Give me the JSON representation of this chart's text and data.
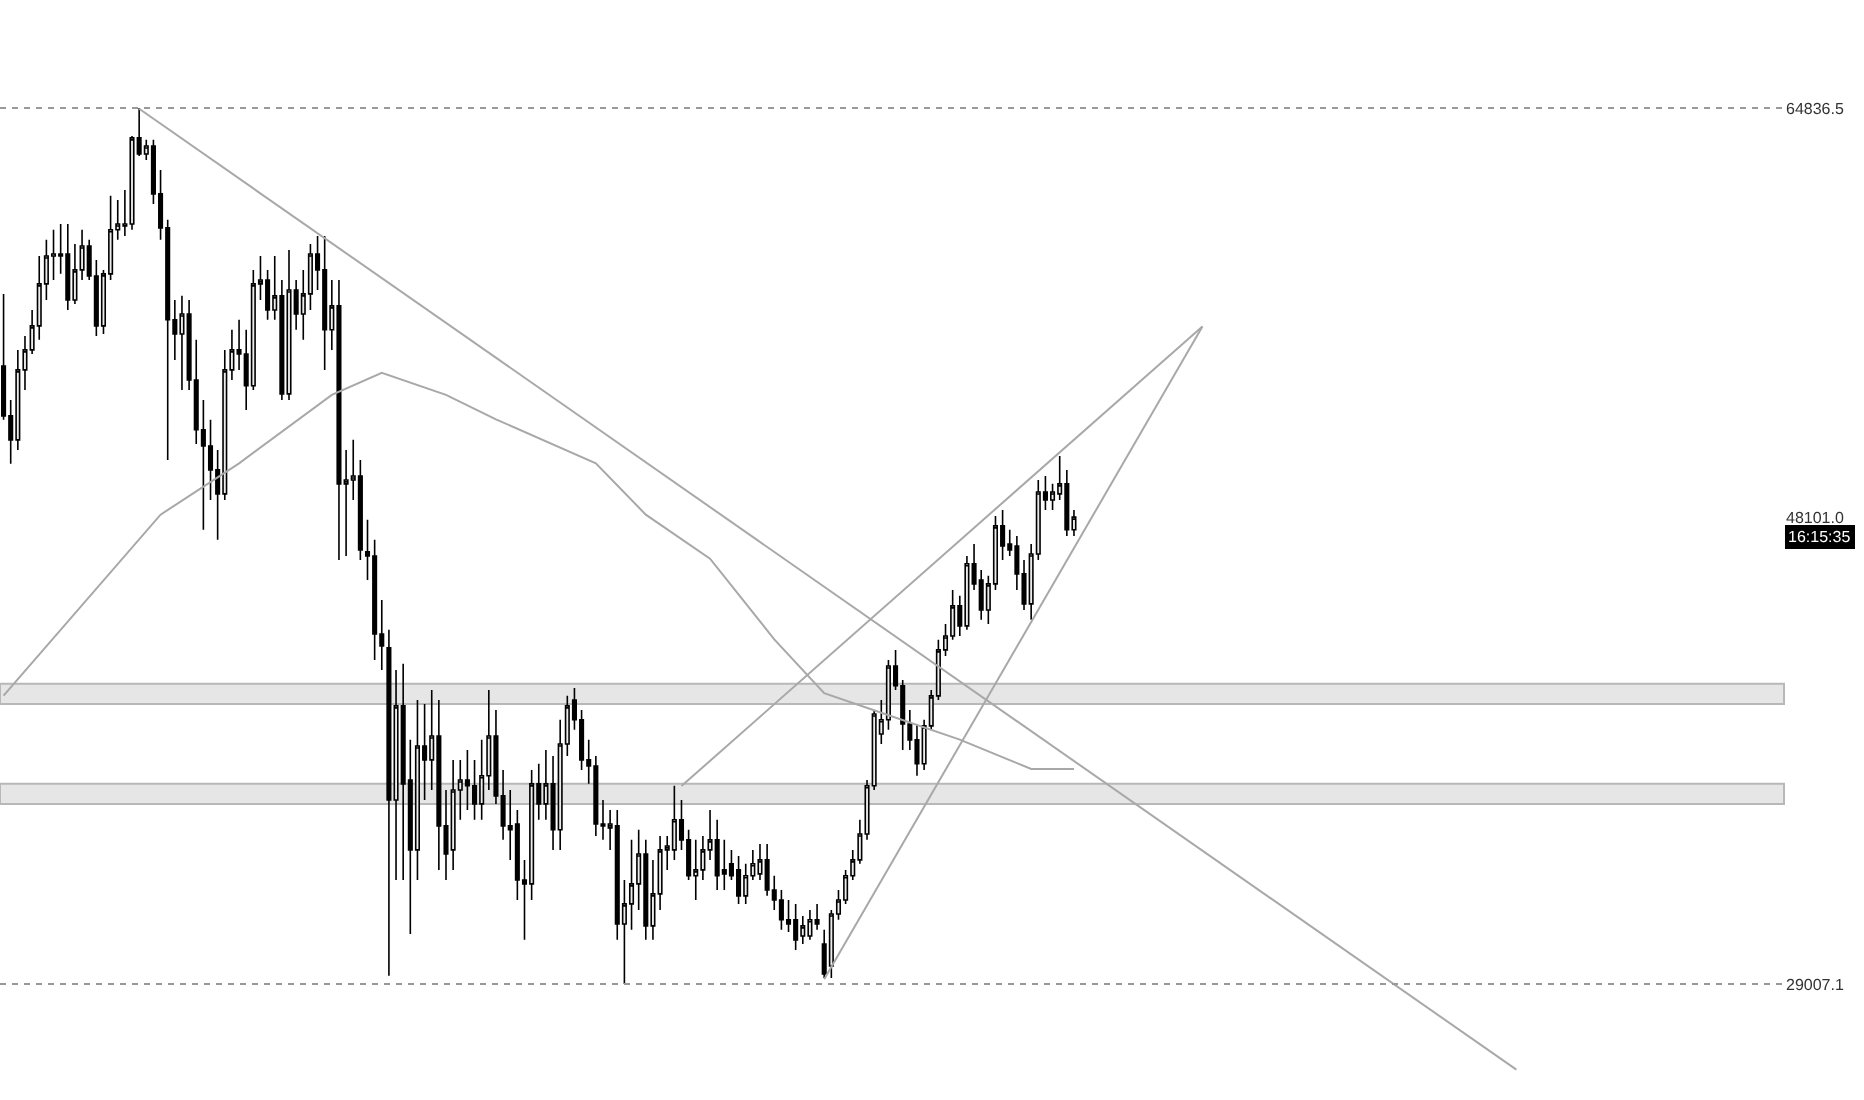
{
  "chart_data": {
    "type": "candlestick",
    "categories": [
      null,
      null,
      null,
      null,
      null,
      null,
      null,
      null,
      null,
      null,
      null,
      null,
      null,
      null,
      null,
      null,
      null,
      null,
      null,
      null,
      null,
      null,
      null,
      null,
      null,
      null,
      null,
      null,
      null,
      null,
      null,
      null,
      null,
      null,
      null,
      null,
      null,
      null,
      null,
      null,
      null,
      null,
      null,
      null,
      null,
      null,
      null,
      null,
      null,
      null,
      null,
      null,
      null,
      null,
      null,
      null,
      null,
      null,
      null,
      null,
      null,
      null,
      null,
      null,
      null,
      null,
      null,
      null,
      null,
      null,
      null,
      null,
      null,
      null,
      null,
      null,
      null,
      null,
      null,
      null,
      null,
      null,
      null,
      null,
      null,
      null,
      null,
      null,
      null,
      null,
      null,
      null,
      null,
      null,
      null,
      null,
      null,
      null,
      null,
      null,
      null,
      null,
      null,
      null,
      null,
      null,
      null,
      null,
      null,
      null,
      null,
      null,
      null,
      null,
      null,
      null,
      null,
      null,
      null,
      null,
      null,
      null,
      null,
      null,
      null,
      null,
      null,
      null,
      null,
      null,
      null,
      null,
      null,
      null,
      null,
      null,
      null,
      null,
      null,
      null,
      null,
      null,
      null,
      null,
      null,
      null,
      null,
      null,
      null,
      null,
      null,
      null,
      null,
      null,
      null,
      null,
      null,
      null,
      null,
      null,
      null,
      null,
      null,
      null,
      null,
      null,
      null,
      null,
      null,
      null,
      null,
      null,
      null,
      null,
      null,
      null,
      null,
      null,
      null,
      null,
      null,
      null,
      null,
      null,
      null,
      null,
      null,
      null,
      null,
      null,
      null,
      null,
      null,
      null,
      null,
      null,
      null,
      null,
      null,
      null,
      null,
      null,
      null,
      null,
      null,
      null,
      null,
      null,
      null,
      null,
      null,
      null,
      null,
      null,
      null,
      null,
      null,
      null,
      null,
      null,
      null,
      null,
      null,
      null,
      null,
      null,
      null,
      null,
      null,
      null,
      null,
      null,
      null,
      null,
      null,
      null,
      null,
      null,
      null,
      null,
      null,
      null,
      null,
      null,
      null,
      null,
      null,
      null,
      null,
      null
    ],
    "ohlc": [
      [
        54280,
        57230,
        52080,
        52240
      ],
      [
        52240,
        52890,
        50280,
        51260
      ],
      [
        51260,
        54940,
        50850,
        54120
      ],
      [
        54120,
        55510,
        53300,
        54940
      ],
      [
        54940,
        56570,
        54770,
        55920
      ],
      [
        55920,
        58780,
        55350,
        57640
      ],
      [
        57640,
        59440,
        56980,
        58780
      ],
      [
        58780,
        59850,
        57800,
        58860
      ],
      [
        58860,
        60090,
        58050,
        58780
      ],
      [
        58860,
        60090,
        56570,
        56980
      ],
      [
        56980,
        59270,
        56820,
        58210
      ],
      [
        58210,
        59850,
        57800,
        59190
      ],
      [
        59190,
        59440,
        57800,
        57960
      ],
      [
        57960,
        58620,
        55510,
        55920
      ],
      [
        55920,
        58210,
        55590,
        58050
      ],
      [
        58050,
        61240,
        57800,
        59850
      ],
      [
        59850,
        61070,
        59440,
        60090
      ],
      [
        60010,
        61480,
        59600,
        60090
      ],
      [
        60090,
        63690,
        59850,
        63610
      ],
      [
        63610,
        64836.5,
        62870,
        62950
      ],
      [
        62950,
        63530,
        62710,
        63280
      ],
      [
        63280,
        63530,
        60910,
        61320
      ],
      [
        61320,
        62300,
        59440,
        59930
      ],
      [
        59930,
        60260,
        50440,
        56170
      ],
      [
        56170,
        56980,
        54530,
        55590
      ],
      [
        55590,
        57150,
        53300,
        56410
      ],
      [
        56410,
        56980,
        53300,
        53710
      ],
      [
        53710,
        55350,
        51090,
        51670
      ],
      [
        51670,
        52890,
        47580,
        51010
      ],
      [
        51010,
        52080,
        48800,
        50030
      ],
      [
        50030,
        50850,
        47170,
        49050
      ],
      [
        49050,
        54940,
        48800,
        54120
      ],
      [
        54120,
        55760,
        53710,
        54940
      ],
      [
        54940,
        56170,
        54120,
        54770
      ],
      [
        54770,
        55760,
        52480,
        53470
      ],
      [
        53470,
        58210,
        53300,
        57640
      ],
      [
        57640,
        58780,
        56980,
        57800
      ],
      [
        57800,
        58210,
        56170,
        56570
      ],
      [
        56570,
        58780,
        56170,
        57150
      ],
      [
        57150,
        57800,
        52890,
        53140
      ],
      [
        53140,
        59030,
        52890,
        57390
      ],
      [
        57390,
        57800,
        55760,
        56410
      ],
      [
        56410,
        58210,
        55350,
        57230
      ],
      [
        57230,
        59270,
        56570,
        58860
      ],
      [
        58860,
        59600,
        57390,
        58210
      ],
      [
        58210,
        59600,
        54120,
        55760
      ],
      [
        55760,
        57800,
        54940,
        56740
      ],
      [
        56740,
        57800,
        46350,
        49460
      ],
      [
        49460,
        50850,
        46510,
        49620
      ],
      [
        49620,
        51260,
        48800,
        49780
      ],
      [
        49780,
        50440,
        46350,
        46760
      ],
      [
        46680,
        47990,
        45530,
        46510
      ],
      [
        46510,
        47170,
        42260,
        43320
      ],
      [
        43320,
        44710,
        41850,
        42830
      ],
      [
        42750,
        43490,
        29340,
        36530
      ],
      [
        36530,
        41850,
        33260,
        40380
      ],
      [
        40380,
        42100,
        33260,
        37190
      ],
      [
        37350,
        38990,
        31050,
        34490
      ],
      [
        34490,
        40620,
        33260,
        38740
      ],
      [
        38740,
        40460,
        36530,
        38170
      ],
      [
        38170,
        41030,
        36940,
        39150
      ],
      [
        39150,
        40620,
        33670,
        35470
      ],
      [
        35470,
        36940,
        33260,
        34320
      ],
      [
        34490,
        38170,
        33670,
        36940
      ],
      [
        36940,
        38170,
        35720,
        37350
      ],
      [
        37350,
        38580,
        36120,
        37110
      ],
      [
        37110,
        38170,
        35720,
        36370
      ],
      [
        36370,
        38990,
        35720,
        37520
      ],
      [
        37520,
        41030,
        36940,
        39150
      ],
      [
        39150,
        40210,
        36370,
        36700
      ],
      [
        36700,
        37760,
        34900,
        35470
      ],
      [
        35470,
        36940,
        34080,
        35310
      ],
      [
        35550,
        36120,
        32440,
        33260
      ],
      [
        33260,
        34080,
        30810,
        33100
      ],
      [
        33100,
        37760,
        32440,
        37190
      ],
      [
        37190,
        38010,
        35720,
        36370
      ],
      [
        36370,
        38580,
        35720,
        37190
      ],
      [
        37190,
        38330,
        34490,
        35310
      ],
      [
        35310,
        39810,
        34490,
        38820
      ],
      [
        38820,
        40790,
        38330,
        40380
      ],
      [
        40620,
        41110,
        39400,
        39810
      ],
      [
        39810,
        40210,
        37760,
        38170
      ],
      [
        38170,
        38990,
        37190,
        37920
      ],
      [
        37920,
        38330,
        35060,
        35550
      ],
      [
        35550,
        36530,
        34900,
        35470
      ],
      [
        35390,
        36120,
        34490,
        35550
      ],
      [
        35470,
        36120,
        30810,
        31460
      ],
      [
        31460,
        33260,
        29007.1,
        32280
      ],
      [
        32280,
        34900,
        31220,
        33100
      ],
      [
        33100,
        35310,
        32030,
        34320
      ],
      [
        34320,
        34900,
        30810,
        31380
      ],
      [
        31380,
        34080,
        30810,
        32690
      ],
      [
        32690,
        35060,
        32030,
        34490
      ],
      [
        34490,
        35060,
        33670,
        34650
      ],
      [
        34490,
        37110,
        34080,
        35720
      ],
      [
        35720,
        36530,
        34490,
        34900
      ],
      [
        34900,
        35310,
        33260,
        33430
      ],
      [
        33430,
        34900,
        32440,
        33670
      ],
      [
        33670,
        35060,
        33260,
        34490
      ],
      [
        34490,
        36120,
        34080,
        34900
      ],
      [
        34900,
        35720,
        32850,
        33430
      ],
      [
        33670,
        34900,
        32850,
        33510
      ],
      [
        33920,
        34490,
        33260,
        33430
      ],
      [
        33670,
        34240,
        32280,
        32610
      ],
      [
        32610,
        33920,
        32280,
        33430
      ],
      [
        33430,
        34490,
        33260,
        33920
      ],
      [
        33510,
        34730,
        33260,
        34080
      ],
      [
        34080,
        34730,
        32610,
        32850
      ],
      [
        32850,
        33430,
        32030,
        32440
      ],
      [
        32440,
        32850,
        31220,
        31630
      ],
      [
        31630,
        32440,
        31130,
        31460
      ],
      [
        31630,
        32280,
        30400,
        30810
      ],
      [
        30970,
        31790,
        30640,
        31380
      ],
      [
        30970,
        32030,
        30810,
        31630
      ],
      [
        31630,
        32280,
        31220,
        31460
      ],
      [
        30640,
        31220,
        29250,
        29420
      ],
      [
        29740,
        32030,
        29250,
        31870
      ],
      [
        31870,
        32850,
        31630,
        32440
      ],
      [
        32440,
        33670,
        32280,
        33430
      ],
      [
        33430,
        34490,
        33260,
        34080
      ],
      [
        34080,
        35720,
        33920,
        35140
      ],
      [
        35140,
        37350,
        34900,
        37110
      ],
      [
        37110,
        40210,
        36940,
        40050
      ],
      [
        39230,
        40620,
        38820,
        39810
      ],
      [
        39810,
        42260,
        39400,
        42010
      ],
      [
        42010,
        42670,
        41030,
        41200
      ],
      [
        41200,
        41440,
        38580,
        39640
      ],
      [
        39640,
        40210,
        38580,
        38990
      ],
      [
        38990,
        39640,
        37520,
        38010
      ],
      [
        38010,
        39810,
        37760,
        39560
      ],
      [
        39560,
        41030,
        39400,
        40790
      ],
      [
        40790,
        43080,
        40620,
        42670
      ],
      [
        42670,
        43730,
        42420,
        43240
      ],
      [
        43240,
        45120,
        43080,
        44470
      ],
      [
        44470,
        44880,
        43240,
        43650
      ],
      [
        43650,
        46510,
        43490,
        46190
      ],
      [
        46190,
        47000,
        45120,
        45370
      ],
      [
        45530,
        45940,
        43900,
        44300
      ],
      [
        44300,
        45700,
        43730,
        45370
      ],
      [
        45370,
        48150,
        45120,
        47740
      ],
      [
        47740,
        48390,
        46350,
        46920
      ],
      [
        47000,
        47580,
        46510,
        46760
      ],
      [
        46920,
        47330,
        45120,
        45780
      ],
      [
        45780,
        46350,
        44300,
        44550
      ],
      [
        44550,
        47000,
        43900,
        46590
      ],
      [
        46590,
        49620,
        46350,
        49130
      ],
      [
        49130,
        49780,
        48390,
        48800
      ],
      [
        48800,
        49460,
        48390,
        49130
      ],
      [
        49050,
        50600,
        48800,
        49460
      ],
      [
        49460,
        50030,
        47330,
        47580
      ],
      [
        47580,
        48390,
        47330,
        48101.0
      ],
      null,
      null,
      null,
      null,
      null,
      null,
      null,
      null,
      null,
      null,
      null,
      null,
      null,
      null,
      null,
      null,
      null,
      null,
      null,
      null,
      null,
      null,
      null,
      null,
      null,
      null,
      null,
      null,
      null,
      null,
      null,
      null,
      null,
      null,
      null,
      null,
      null,
      null,
      null,
      null,
      null,
      null,
      null,
      null,
      null,
      null,
      null,
      null,
      null,
      null,
      null,
      null,
      null,
      null,
      null,
      null,
      null,
      null,
      null,
      null,
      null,
      null,
      null,
      null,
      null,
      null,
      null,
      null,
      null,
      null,
      null,
      null,
      null,
      null,
      null,
      null,
      null,
      null,
      null,
      null,
      null,
      null,
      null,
      null,
      null,
      null,
      null,
      null,
      null,
      null,
      null,
      null,
      null,
      null,
      null,
      null,
      null,
      null,
      null
    ],
    "series": [
      {
        "type": "line",
        "color": "#a8a8a8",
        "values": [
          40800,
          null,
          null,
          null,
          null,
          null,
          null,
          null,
          null,
          null,
          null,
          null,
          null,
          null,
          null,
          null,
          null,
          null,
          null,
          null,
          null,
          null,
          48200,
          null,
          null,
          null,
          null,
          null,
          null,
          null,
          null,
          null,
          null,
          50300,
          null,
          null,
          null,
          null,
          null,
          null,
          null,
          null,
          null,
          null,
          null,
          null,
          53100,
          null,
          null,
          null,
          null,
          null,
          null,
          54000,
          null,
          null,
          null,
          null,
          null,
          null,
          null,
          null,
          53100,
          null,
          null,
          null,
          null,
          null,
          null,
          52100,
          null,
          null,
          null,
          null,
          null,
          null,
          null,
          null,
          null,
          null,
          null,
          null,
          null,
          50300,
          null,
          null,
          null,
          null,
          null,
          null,
          48200,
          null,
          null,
          null,
          null,
          null,
          null,
          null,
          null,
          46400,
          null,
          null,
          null,
          null,
          null,
          null,
          null,
          null,
          43100,
          null,
          null,
          null,
          null,
          null,
          null,
          40900,
          null,
          null,
          null,
          null,
          null,
          null,
          null,
          40100,
          null,
          null,
          null,
          null,
          null,
          null,
          null,
          null,
          null,
          null,
          39000,
          null,
          null,
          null,
          null,
          null,
          null,
          null,
          null,
          null,
          37800,
          null,
          null,
          null,
          null,
          null,
          37800,
          null,
          null,
          null,
          null,
          null,
          null,
          null,
          null,
          null,
          null,
          null,
          null,
          null,
          null,
          null,
          null,
          null,
          null,
          null,
          null,
          null,
          null,
          null,
          null,
          null,
          null,
          null,
          null,
          null,
          null,
          null,
          null,
          null,
          null,
          null,
          null,
          null,
          null,
          null,
          null,
          null,
          null,
          null,
          null,
          null,
          null,
          null,
          null,
          null,
          null,
          null,
          null,
          null,
          null,
          null,
          null,
          null,
          null,
          null,
          null,
          null,
          null,
          null,
          null,
          null,
          null,
          null,
          null,
          null,
          null,
          null,
          null,
          null,
          null,
          null,
          null,
          null,
          null,
          null,
          null,
          null,
          null,
          null,
          null,
          null,
          null,
          null,
          null,
          null,
          null,
          null,
          null,
          null,
          null,
          null,
          null,
          null,
          null,
          null
        ]
      },
      {
        "type": "line",
        "color": "#a8a8a8",
        "values": [
          null,
          null,
          null,
          null,
          null,
          null,
          null,
          null,
          null,
          null,
          null,
          null,
          null,
          null,
          null,
          null,
          null,
          null,
          null,
          64800,
          null,
          null,
          null,
          null,
          null,
          null,
          null,
          null,
          null,
          null,
          null,
          null,
          null,
          null,
          null,
          null,
          null,
          null,
          null,
          null,
          null,
          null,
          null,
          null,
          null,
          null,
          null,
          null,
          null,
          null,
          null,
          null,
          null,
          null,
          null,
          null,
          null,
          null,
          null,
          null,
          null,
          null,
          null,
          null,
          null,
          null,
          null,
          null,
          null,
          null,
          null,
          null,
          null,
          null,
          null,
          null,
          null,
          null,
          null,
          null,
          null,
          null,
          null,
          null,
          null,
          null,
          null,
          null,
          null,
          null,
          null,
          null,
          null,
          null,
          null,
          null,
          null,
          null,
          null,
          null,
          null,
          null,
          null,
          null,
          null,
          null,
          null,
          null,
          null,
          null,
          null,
          null,
          null,
          null,
          null,
          null,
          null,
          null,
          null,
          null,
          null,
          null,
          null,
          null,
          null,
          null,
          null,
          null,
          null,
          null,
          null,
          null,
          null,
          null,
          null,
          null,
          null,
          null,
          null,
          null,
          null,
          null,
          null,
          null,
          null,
          null,
          null,
          null,
          null,
          null,
          null,
          null,
          null,
          null,
          null,
          null,
          null,
          null,
          null,
          null,
          null,
          null,
          null,
          null,
          null,
          null,
          null,
          null,
          null,
          null,
          null,
          null,
          null,
          null,
          null,
          null,
          null,
          null,
          null,
          null,
          null,
          null,
          null,
          null,
          null,
          null,
          null,
          null,
          null,
          null,
          null,
          null,
          null,
          null,
          null,
          null,
          null,
          null,
          null,
          null,
          null,
          null,
          null,
          null,
          null,
          null,
          null,
          null,
          null,
          null,
          null,
          null,
          25500,
          null,
          null,
          null,
          null,
          null,
          null,
          null,
          null,
          null,
          null,
          null,
          null,
          null,
          null,
          null,
          null,
          null,
          null,
          null,
          null,
          null,
          null,
          null,
          null,
          null,
          null,
          null,
          null,
          null,
          null,
          null,
          null,
          null,
          null,
          null,
          null,
          null
        ]
      },
      {
        "type": "line",
        "color": "#a8a8a8",
        "values": [
          null,
          null,
          null,
          null,
          null,
          null,
          null,
          null,
          null,
          null,
          null,
          null,
          null,
          null,
          null,
          null,
          null,
          null,
          null,
          null,
          null,
          null,
          null,
          null,
          null,
          null,
          null,
          null,
          null,
          null,
          null,
          null,
          null,
          null,
          null,
          null,
          null,
          null,
          null,
          null,
          null,
          null,
          null,
          null,
          null,
          null,
          null,
          null,
          null,
          null,
          null,
          null,
          null,
          null,
          null,
          null,
          null,
          null,
          null,
          null,
          null,
          null,
          null,
          null,
          null,
          null,
          null,
          null,
          null,
          null,
          null,
          null,
          null,
          null,
          null,
          null,
          null,
          null,
          null,
          null,
          null,
          null,
          null,
          null,
          null,
          null,
          null,
          null,
          null,
          null,
          null,
          null,
          null,
          null,
          null,
          37100,
          null,
          null,
          null,
          null,
          null,
          null,
          null,
          null,
          null,
          null,
          null,
          null,
          null,
          null,
          null,
          null,
          null,
          null,
          null,
          null,
          null,
          null,
          null,
          null,
          null,
          null,
          null,
          null,
          null,
          null,
          null,
          null,
          null,
          null,
          null,
          null,
          null,
          null,
          null,
          null,
          null,
          null,
          null,
          null,
          null,
          null,
          null,
          null,
          null,
          null,
          null,
          null,
          null,
          null,
          null,
          null,
          null,
          null,
          null,
          null,
          null,
          null,
          null,
          null,
          null,
          null,
          null,
          null,
          null,
          null,
          null,
          null,
          55900,
          null,
          null,
          null,
          null,
          null,
          null,
          null,
          null,
          null,
          null,
          null,
          null,
          null,
          null,
          null,
          null,
          null,
          null,
          null,
          null,
          null,
          null,
          null,
          null,
          null,
          null,
          null,
          null,
          null,
          null,
          null,
          null,
          null,
          null,
          null,
          null,
          null,
          null,
          null,
          null,
          null,
          null,
          null,
          null,
          null,
          null,
          null,
          null,
          null,
          null,
          null,
          null,
          null,
          null,
          null,
          null,
          null,
          null,
          null,
          null,
          null,
          null,
          null,
          null,
          null,
          null,
          null,
          null,
          null,
          null,
          null,
          null,
          null,
          null,
          null,
          null,
          null,
          null,
          null,
          null,
          null
        ]
      },
      {
        "type": "line",
        "color": "#a8a8a8",
        "values": [
          null,
          null,
          null,
          null,
          null,
          null,
          null,
          null,
          null,
          null,
          null,
          null,
          null,
          null,
          null,
          null,
          null,
          null,
          null,
          null,
          null,
          null,
          null,
          null,
          null,
          null,
          null,
          null,
          null,
          null,
          null,
          null,
          null,
          null,
          null,
          null,
          null,
          null,
          null,
          null,
          null,
          null,
          null,
          null,
          null,
          null,
          null,
          null,
          null,
          null,
          null,
          null,
          null,
          null,
          null,
          null,
          null,
          null,
          null,
          null,
          null,
          null,
          null,
          null,
          null,
          null,
          null,
          null,
          null,
          null,
          null,
          null,
          null,
          null,
          null,
          null,
          null,
          null,
          null,
          null,
          null,
          null,
          null,
          null,
          null,
          null,
          null,
          null,
          null,
          null,
          null,
          null,
          null,
          null,
          null,
          null,
          null,
          null,
          null,
          null,
          null,
          null,
          null,
          null,
          null,
          null,
          null,
          null,
          null,
          null,
          null,
          null,
          null,
          null,
          null,
          29200,
          null,
          null,
          null,
          null,
          null,
          null,
          null,
          null,
          null,
          null,
          null,
          null,
          null,
          null,
          null,
          null,
          null,
          null,
          null,
          null,
          null,
          null,
          null,
          null,
          null,
          null,
          null,
          null,
          null,
          null,
          null,
          null,
          null,
          null,
          null,
          null,
          null,
          null,
          null,
          null,
          null,
          null,
          null,
          null,
          null,
          null,
          null,
          null,
          null,
          null,
          null,
          null,
          55900,
          null,
          null,
          null,
          null,
          null,
          null,
          null,
          null,
          null,
          null,
          null,
          null,
          null,
          null,
          null,
          null,
          null,
          null,
          null,
          null,
          null,
          null,
          null,
          null,
          null,
          null,
          null,
          null,
          null,
          null,
          null,
          null,
          null,
          null,
          null,
          null,
          null,
          null,
          null,
          null,
          null,
          null,
          null,
          null,
          null,
          null,
          null,
          null,
          null,
          null,
          null,
          null,
          null,
          null,
          null,
          null,
          null,
          null,
          null,
          null,
          null,
          null,
          null,
          null,
          null,
          null,
          null,
          null,
          null,
          null,
          null,
          null,
          null,
          null,
          null,
          null,
          null,
          null,
          null,
          null,
          null
        ]
      }
    ],
    "bands": [
      {
        "axis": "y",
        "from": 40460,
        "to": 41280,
        "color": "#e6e6e6"
      },
      {
        "axis": "y",
        "from": 36370,
        "to": 37190,
        "color": "#e6e6e6"
      }
    ],
    "ref_lines": [
      {
        "axis": "y",
        "value": 64836.5,
        "color": "#999999",
        "line_style": "dotted"
      },
      {
        "axis": "y",
        "value": 29007.1,
        "color": "#999999",
        "line_style": "dotted"
      }
    ],
    "annotations": [
      "16:15:35"
    ],
    "ylim": [
      24260,
      69250
    ],
    "yticks": [
      {
        "value": 29007.1,
        "label": "29007.1"
      },
      {
        "value": 48101.0,
        "label": "48101.0"
      },
      {
        "value": 64836.5,
        "label": "64836.5"
      }
    ],
    "tick_labels": "y",
    "grid": false,
    "line_style": "solid",
    "marker": "none"
  }
}
